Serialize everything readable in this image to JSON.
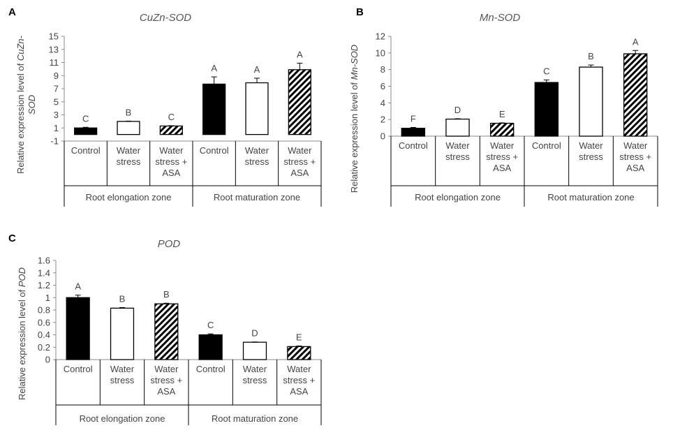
{
  "panels": [
    {
      "letter": "A",
      "ylabel_lines": [
        "Relative expression level of CuZn-",
        "SOD"
      ],
      "chart_data": {
        "type": "bar",
        "title": "CuZn-SOD",
        "ylabel": "Relative expression level of CuZn-SOD",
        "ylim": [
          -1,
          15
        ],
        "yticks": [
          "-1",
          "1",
          "3",
          "5",
          "7",
          "9",
          "11",
          "13",
          "15"
        ],
        "ytick_values": [
          -1,
          1,
          3,
          5,
          7,
          9,
          11,
          13,
          15
        ],
        "groups": [
          "Root elongation zone",
          "Root maturation zone"
        ],
        "categories": [
          [
            "Control"
          ],
          [
            "Water",
            "stress"
          ],
          [
            "Water",
            "stress +",
            "ASA"
          ],
          [
            "Control"
          ],
          [
            "Water",
            "stress"
          ],
          [
            "Water",
            "stress +",
            "ASA"
          ]
        ],
        "treatments": [
          "control",
          "water",
          "asa",
          "control",
          "water",
          "asa"
        ],
        "values": [
          1.0,
          2.0,
          1.3,
          7.7,
          7.9,
          9.9
        ],
        "errors": [
          0.1,
          0.05,
          0.05,
          1.1,
          0.7,
          1.0
        ],
        "letters": [
          "C",
          "B",
          "C",
          "A",
          "A",
          "A"
        ]
      }
    },
    {
      "letter": "B",
      "ylabel_lines": [
        "Relative expression level of Mn-SOD"
      ],
      "chart_data": {
        "type": "bar",
        "title": "Mn-SOD",
        "ylabel": "Relative expression level of Mn-SOD",
        "ylim": [
          0,
          12
        ],
        "yticks": [
          "0",
          "2",
          "4",
          "6",
          "8",
          "10",
          "12"
        ],
        "ytick_values": [
          0,
          2,
          4,
          6,
          8,
          10,
          12
        ],
        "groups": [
          "Root elongation zone",
          "Root maturation zone"
        ],
        "categories": [
          [
            "Control"
          ],
          [
            "Water",
            "stress"
          ],
          [
            "Water",
            "stress +",
            "ASA"
          ],
          [
            "Control"
          ],
          [
            "Water",
            "stress"
          ],
          [
            "Water",
            "stress +",
            "ASA"
          ]
        ],
        "treatments": [
          "control",
          "water",
          "asa",
          "control",
          "water",
          "asa"
        ],
        "values": [
          0.95,
          2.05,
          1.55,
          6.45,
          8.3,
          9.9
        ],
        "errors": [
          0.1,
          0.05,
          0.05,
          0.3,
          0.25,
          0.4
        ],
        "letters": [
          "F",
          "D",
          "E",
          "C",
          "B",
          "A"
        ]
      }
    },
    {
      "letter": "C",
      "ylabel_lines": [
        "Relative expression level of POD"
      ],
      "chart_data": {
        "type": "bar",
        "title": "POD",
        "ylabel": "Relative expression level of POD",
        "ylim": [
          0,
          1.6
        ],
        "yticks": [
          "0",
          "0.2",
          "0.4",
          "0.6",
          "0.8",
          "1",
          "1.2",
          "1.4",
          "1.6"
        ],
        "ytick_values": [
          0,
          0.2,
          0.4,
          0.6,
          0.8,
          1,
          1.2,
          1.4,
          1.6
        ],
        "groups": [
          "Root elongation zone",
          "Root maturation zone"
        ],
        "categories": [
          [
            "Control"
          ],
          [
            "Water",
            "stress"
          ],
          [
            "Water",
            "stress +",
            "ASA"
          ],
          [
            "Control"
          ],
          [
            "Water",
            "stress"
          ],
          [
            "Water",
            "stress +",
            "ASA"
          ]
        ],
        "treatments": [
          "control",
          "water",
          "asa",
          "control",
          "water",
          "asa"
        ],
        "values": [
          1.0,
          0.83,
          0.9,
          0.4,
          0.28,
          0.21
        ],
        "errors": [
          0.04,
          0.01,
          0.01,
          0.015,
          0.005,
          0.01
        ],
        "letters": [
          "A",
          "B",
          "B",
          "C",
          "D",
          "E"
        ]
      }
    }
  ]
}
